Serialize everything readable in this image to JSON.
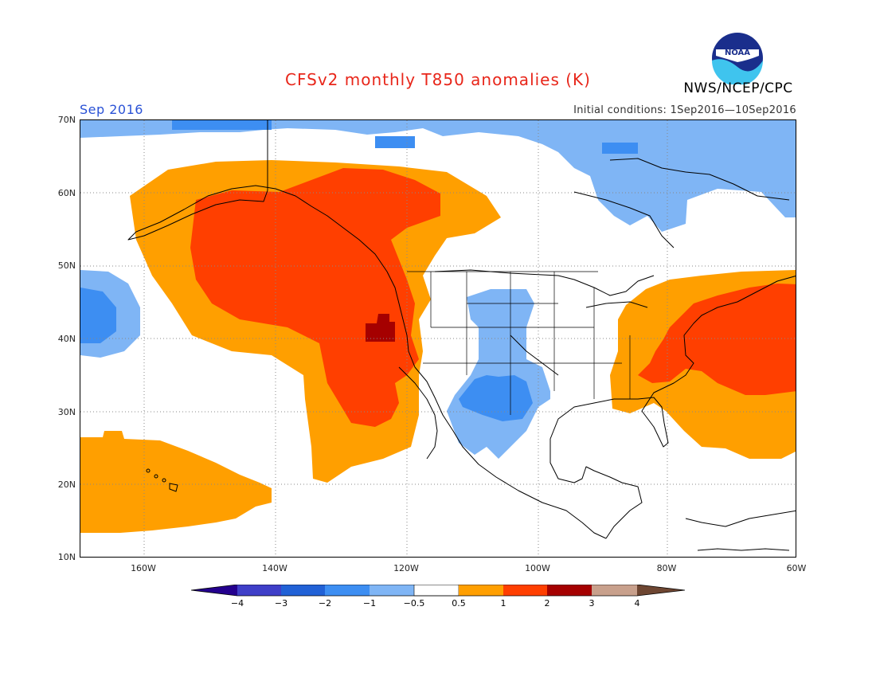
{
  "title": "CFSv2 monthly T850 anomalies (K)",
  "agency": "NWS/NCEP/CPC",
  "logo_text": "NOAA",
  "period": "Sep 2016",
  "initial_conditions": "Initial conditions: 1Sep2016—10Sep2016",
  "map": {
    "lat_labels": [
      "70N",
      "60N",
      "50N",
      "40N",
      "30N",
      "20N",
      "10N"
    ],
    "lon_labels": [
      "160W",
      "140W",
      "120W",
      "100W",
      "80W",
      "60W"
    ],
    "lon_range": [
      -172,
      -60
    ],
    "lat_range": [
      10,
      70
    ],
    "regions": [
      {
        "name": "northeast-pacific-warm-anomaly",
        "category": "1 to 2",
        "color": "#ff3f00"
      },
      {
        "name": "northeast-pacific-warm-margin",
        "category": "0.5 to 1",
        "color": "#ff9f00"
      },
      {
        "name": "oregon-hot-spot",
        "category": "2 to 3",
        "color": "#a50000"
      },
      {
        "name": "eastern-us-atlantic-warm-anomaly",
        "category": "1 to 2",
        "color": "#ff3f00"
      },
      {
        "name": "eastern-us-atlantic-warm-margin",
        "category": "0.5 to 1",
        "color": "#ff9f00"
      },
      {
        "name": "hawaii-warm-anomaly",
        "category": "0.5 to 1",
        "color": "#ff9f00"
      },
      {
        "name": "canada-arctic-cold-anomaly",
        "category": "-1 to -0.5",
        "color": "#7fb5f5"
      },
      {
        "name": "canada-arctic-cold-core",
        "category": "-2 to -1",
        "color": "#3d8ef2"
      },
      {
        "name": "southwest-us-cold-anomaly",
        "category": "-1 to -0.5",
        "color": "#7fb5f5"
      },
      {
        "name": "southwest-us-cold-core",
        "category": "-2 to -1",
        "color": "#3d8ef2"
      },
      {
        "name": "north-pacific-cold-anomaly",
        "category": "-1 to -0.5",
        "color": "#7fb5f5"
      }
    ]
  },
  "colorbar": {
    "labels": [
      "−4",
      "−3",
      "−2",
      "−1",
      "−0.5",
      "0.5",
      "1",
      "2",
      "3",
      "4"
    ],
    "colors": [
      "#24008e",
      "#3f3fc8",
      "#2161d6",
      "#3d8ef2",
      "#7fb5f5",
      "#ffffff",
      "#ff9f00",
      "#ff3f00",
      "#a50000",
      "#c8a08c",
      "#6e4632"
    ]
  }
}
